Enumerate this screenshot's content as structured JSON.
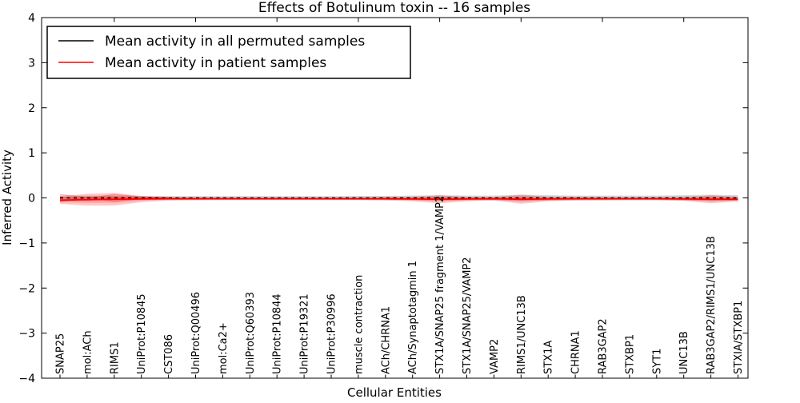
{
  "chart_data": {
    "type": "line",
    "title": "Effects of Botulinum toxin -- 16 samples",
    "xlabel": "Cellular Entities",
    "ylabel": "Inferred Activity",
    "ylim": [
      -4,
      4
    ],
    "yticks": [
      4,
      3,
      2,
      1,
      0,
      -1,
      -2,
      -3,
      -4
    ],
    "ytick_labels": [
      "4",
      "3",
      "2",
      "1",
      "0",
      "−1",
      "−2",
      "−3",
      "−4"
    ],
    "grid": false,
    "legend": {
      "position": "upper left",
      "entries": [
        "Mean activity in all permuted samples",
        "Mean activity in patient samples"
      ]
    },
    "colors": {
      "permuted_line": "#000000",
      "patient_line": "#ff0000",
      "permuted_band": "#999999",
      "patient_band": "#ff0000"
    },
    "categories": [
      "SNAP25",
      "mol:ACh",
      "RIMS1",
      "UniProt:P10845",
      "CST086",
      "UniProt:Q00496",
      "mol:Ca2+",
      "UniProt:Q60393",
      "UniProt:P10844",
      "UniProt:P19321",
      "UniProt:P30996",
      "muscle contraction",
      "ACh/CHRNA1",
      "ACh/Synaptotagmin 1",
      "STX1A/SNAP25 fragment 1/VAMP2",
      "STX1A/SNAP25/VAMP2",
      "VAMP2",
      "RIMS1/UNC13B",
      "STX1A",
      "CHRNA1",
      "RAB3GAP2",
      "STXBP1",
      "SYT1",
      "UNC13B",
      "RAB3GAP2/RIMS1/UNC13B",
      "STXIA/STXBP1"
    ],
    "series": [
      {
        "name": "Mean activity in all permuted samples",
        "color": "#000000",
        "style": "dashed",
        "values": [
          0,
          0,
          0,
          0,
          0,
          0,
          0,
          0,
          0,
          0,
          0,
          0,
          0,
          0,
          0,
          0,
          0,
          0,
          0,
          0,
          0,
          0,
          0,
          0,
          0,
          0
        ]
      },
      {
        "name": "Mean activity in patient samples",
        "color": "#ff0000",
        "style": "solid",
        "values": [
          -0.05,
          -0.04,
          -0.03,
          -0.025,
          -0.02,
          -0.02,
          -0.02,
          -0.02,
          -0.02,
          -0.02,
          -0.02,
          -0.02,
          -0.02,
          -0.025,
          -0.03,
          -0.025,
          -0.02,
          -0.03,
          -0.025,
          -0.02,
          -0.02,
          -0.02,
          -0.02,
          -0.025,
          -0.03,
          -0.03
        ]
      }
    ],
    "bands": [
      {
        "name": "permuted-range-band",
        "series_index": 0,
        "color": "#999999",
        "opacity": 0.38,
        "halfwidth": [
          0.05,
          0.05,
          0.05,
          0.04,
          0.04,
          0.04,
          0.04,
          0.04,
          0.04,
          0.04,
          0.04,
          0.045,
          0.045,
          0.05,
          0.06,
          0.05,
          0.05,
          0.07,
          0.06,
          0.05,
          0.05,
          0.05,
          0.05,
          0.06,
          0.07,
          0.06
        ]
      },
      {
        "name": "patient-range-band",
        "series_index": 1,
        "color": "#ff0000",
        "opacity": 0.22,
        "halfwidth": [
          0.08,
          0.13,
          0.14,
          0.07,
          0.04,
          0.035,
          0.03,
          0.03,
          0.03,
          0.03,
          0.03,
          0.03,
          0.04,
          0.05,
          0.09,
          0.05,
          0.04,
          0.1,
          0.05,
          0.04,
          0.035,
          0.03,
          0.03,
          0.04,
          0.09,
          0.05
        ]
      }
    ],
    "overlay_streaks": [
      {
        "indices": [
          0,
          1,
          2,
          3,
          4
        ],
        "values": [
          0.07,
          0.01,
          -0.07,
          -0.02,
          0.0
        ]
      },
      {
        "indices": [
          0,
          1,
          2,
          3,
          4
        ],
        "values": [
          -0.07,
          -0.01,
          0.07,
          0.02,
          0.0
        ]
      },
      {
        "indices": [
          0,
          1,
          2,
          3,
          4
        ],
        "values": [
          0.03,
          -0.05,
          0.02,
          0.0,
          0.0
        ]
      }
    ],
    "top_tick_indices": [
      2,
      5,
      8,
      11,
      14,
      17,
      20,
      23
    ]
  }
}
